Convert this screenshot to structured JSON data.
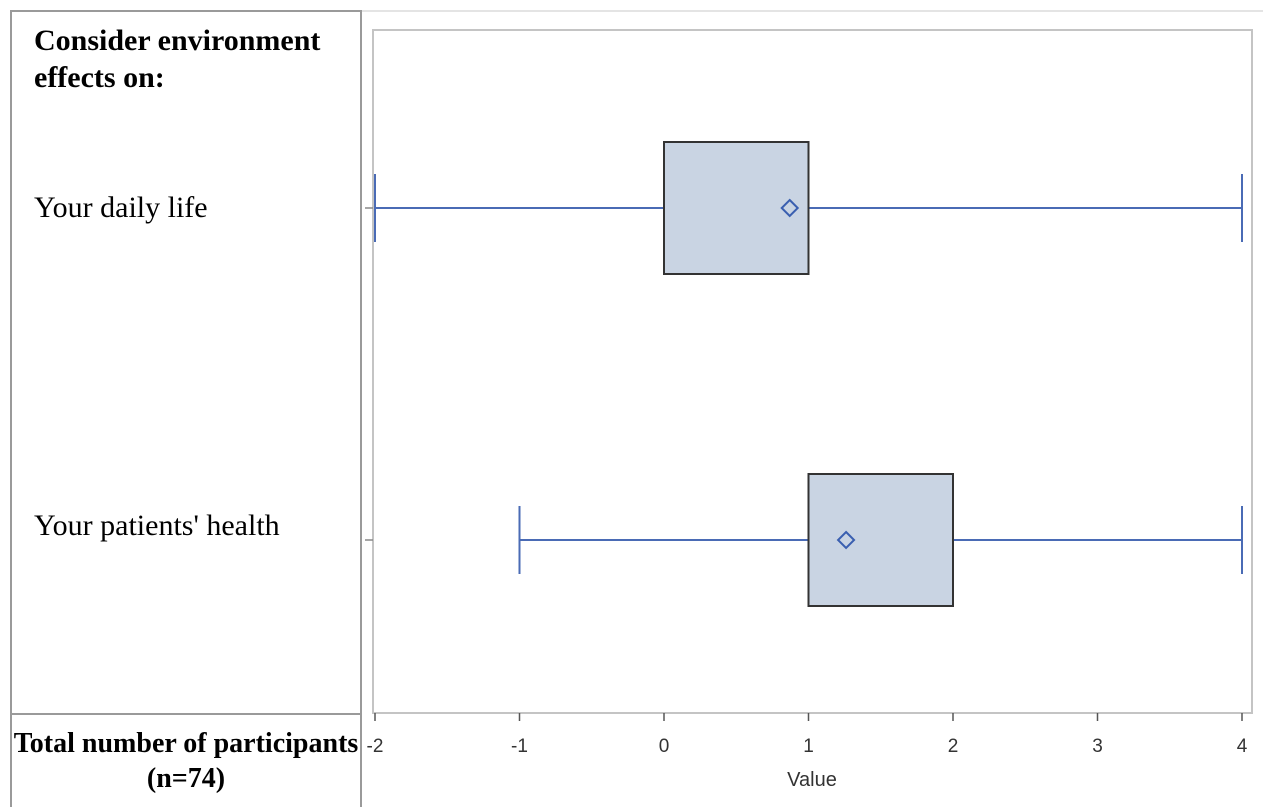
{
  "table": {
    "heading": "Consider environment effects on:",
    "footer": "Total number of participants (n=74)"
  },
  "chart_data": {
    "type": "box",
    "xlabel": "Value",
    "xlim": [
      -2,
      4
    ],
    "xticks": [
      -2,
      -1,
      0,
      1,
      2,
      3,
      4
    ],
    "categories": [
      "Your daily life",
      "Your patients' health"
    ],
    "series": [
      {
        "category": "Your daily life",
        "min": -2,
        "q1": 0,
        "median": 1,
        "q3": 1,
        "max": 4,
        "mean": 0.87
      },
      {
        "category": "Your patients' health",
        "min": -1,
        "q1": 1,
        "median": 1,
        "q3": 2,
        "max": 4,
        "mean": 1.26
      }
    ],
    "colors": {
      "box_fill": "#c9d4e3",
      "box_stroke": "#333333",
      "whisker": "#4a6bb5",
      "mean_marker": "#3a5fb0",
      "frame": "#c4c4c4"
    }
  }
}
